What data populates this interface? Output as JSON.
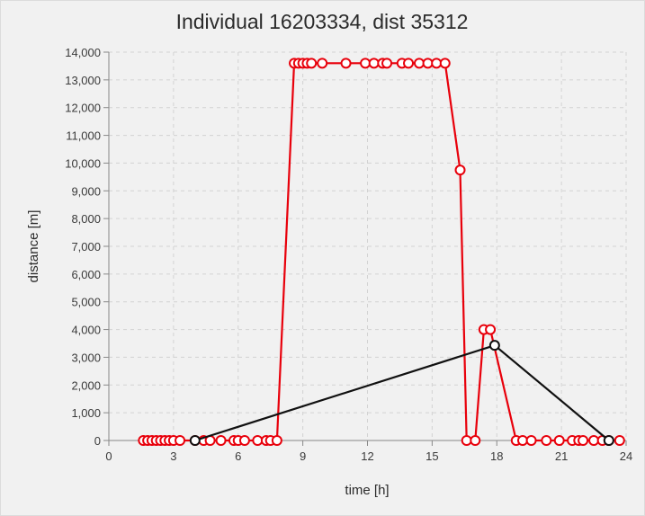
{
  "chart_data": {
    "type": "line",
    "title": "Individual 16203334, dist 35312",
    "xlabel": "time [h]",
    "ylabel": "distance [m]",
    "xlim": [
      0,
      24
    ],
    "ylim": [
      0,
      14000
    ],
    "x_ticks": [
      0,
      3,
      6,
      9,
      12,
      15,
      18,
      21,
      24
    ],
    "x_tick_labels": [
      "0",
      "3",
      "6",
      "9",
      "12",
      "15",
      "18",
      "21",
      "24"
    ],
    "y_ticks": [
      0,
      1000,
      2000,
      3000,
      4000,
      5000,
      6000,
      7000,
      8000,
      9000,
      10000,
      11000,
      12000,
      13000,
      14000
    ],
    "y_tick_labels": [
      "0",
      "1,000",
      "2,000",
      "3,000",
      "4,000",
      "5,000",
      "6,000",
      "7,000",
      "8,000",
      "9,000",
      "10,000",
      "11,000",
      "12,000",
      "13,000",
      "14,000"
    ],
    "grid": true,
    "legend": "none",
    "series": [
      {
        "color": "#e8000b",
        "marker": "circle",
        "x": [
          1.6,
          1.8,
          2.0,
          2.2,
          2.4,
          2.6,
          2.8,
          3.0,
          3.3,
          4.0,
          4.4,
          4.7,
          5.2,
          5.8,
          6.0,
          6.3,
          6.9,
          7.3,
          7.5,
          7.8,
          8.6,
          8.8,
          9.0,
          9.2,
          9.4,
          9.9,
          11.0,
          11.9,
          12.3,
          12.7,
          12.9,
          13.6,
          13.9,
          14.4,
          14.8,
          15.2,
          15.6,
          16.3,
          16.6,
          17.0,
          17.4,
          17.7,
          18.9,
          19.2,
          19.6,
          20.3,
          20.9,
          21.5,
          21.8,
          22.0,
          22.5,
          22.9,
          23.2,
          23.7
        ],
        "y": [
          0,
          0,
          0,
          0,
          0,
          0,
          0,
          0,
          0,
          0,
          0,
          0,
          0,
          0,
          0,
          0,
          0,
          0,
          0,
          0,
          13600,
          13600,
          13600,
          13600,
          13600,
          13600,
          13600,
          13600,
          13600,
          13600,
          13600,
          13600,
          13600,
          13600,
          13600,
          13600,
          13600,
          9750,
          0,
          0,
          4000,
          4000,
          0,
          0,
          0,
          0,
          0,
          0,
          0,
          0,
          0,
          0,
          0,
          0
        ]
      },
      {
        "color": "#111111",
        "marker": "circle",
        "x": [
          4.0,
          17.9,
          23.2
        ],
        "y": [
          0,
          3430,
          0
        ]
      }
    ]
  }
}
